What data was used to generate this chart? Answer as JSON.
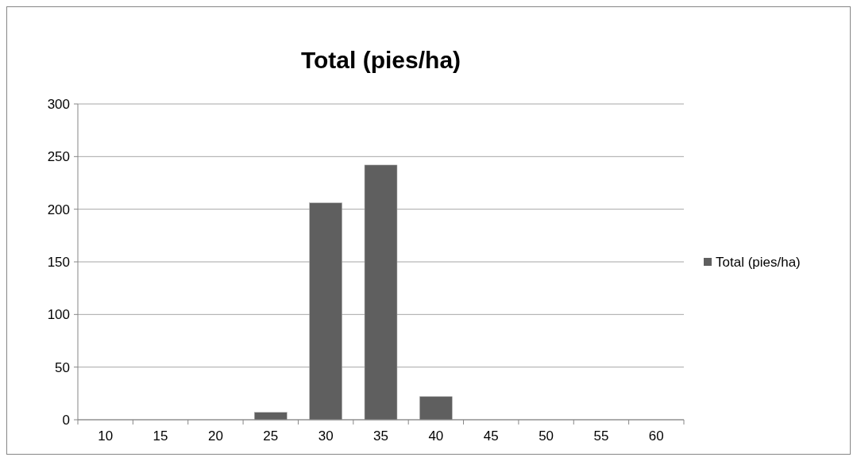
{
  "chart_data": {
    "type": "bar",
    "title": "Total (pies/ha)",
    "categories": [
      "10",
      "15",
      "20",
      "25",
      "30",
      "35",
      "40",
      "45",
      "50",
      "55",
      "60"
    ],
    "series": [
      {
        "name": "Total (pies/ha)",
        "color": "#5f5f5f",
        "values": [
          0,
          0,
          0,
          7,
          206,
          242,
          22,
          0,
          0,
          0,
          0
        ]
      }
    ],
    "ylim": [
      0,
      300
    ],
    "yticks": [
      0,
      50,
      100,
      150,
      200,
      250,
      300
    ],
    "grid": "y",
    "legend": "right"
  }
}
